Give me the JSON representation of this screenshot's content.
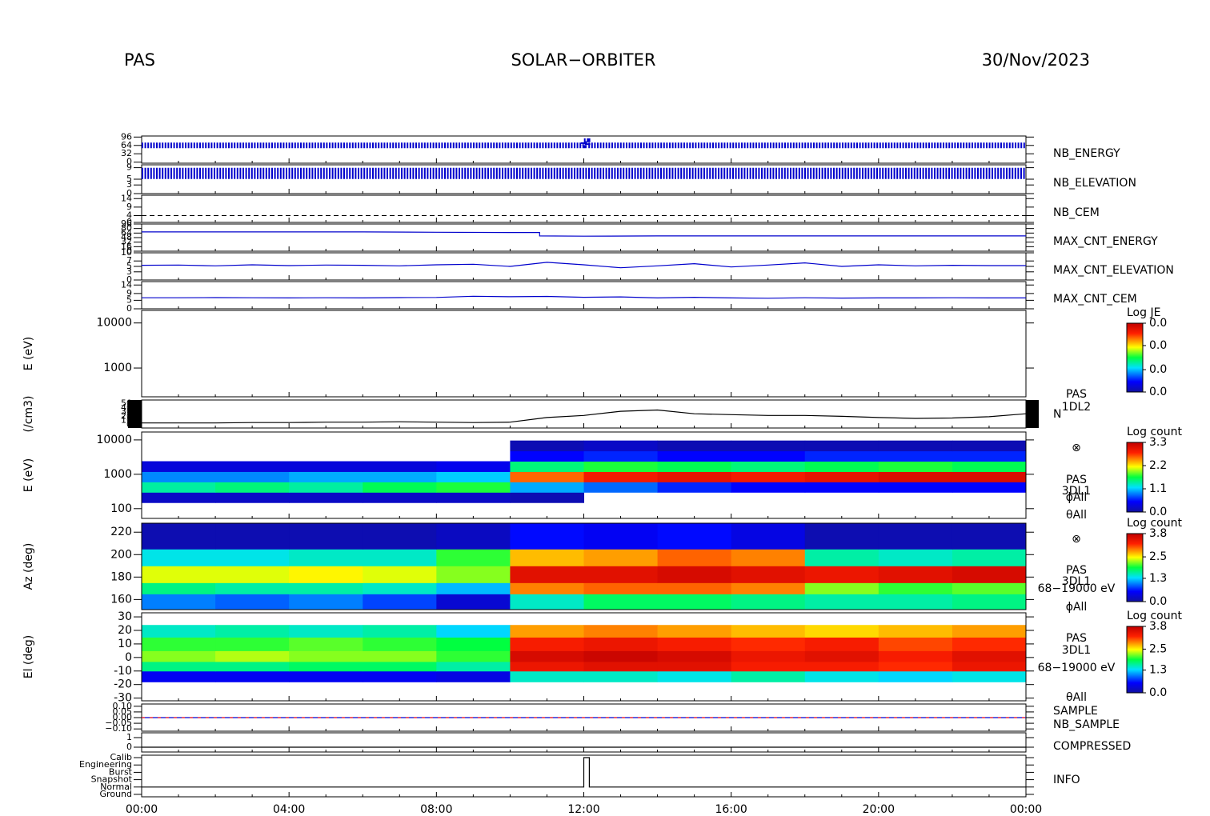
{
  "header": {
    "left": "PAS",
    "center": "SOLAR−ORBITER",
    "right": "30/Nov/2023"
  },
  "time_axis": {
    "xlim": [
      0,
      24
    ],
    "xticks": [
      {
        "value": 0,
        "label": "00:00"
      },
      {
        "value": 4,
        "label": "04:00"
      },
      {
        "value": 8,
        "label": "08:00"
      },
      {
        "value": 12,
        "label": "12:00"
      },
      {
        "value": 16,
        "label": "16:00"
      },
      {
        "value": 20,
        "label": "20:00"
      },
      {
        "value": 24,
        "label": "00:00"
      }
    ],
    "xminor": [
      1,
      2,
      3,
      5,
      6,
      7,
      9,
      10,
      11,
      13,
      14,
      15,
      17,
      18,
      19,
      21,
      22,
      23
    ]
  },
  "chart_data": [
    {
      "type": "line",
      "ylim": [
        -4,
        100
      ],
      "yticks": [
        0,
        32,
        64,
        96
      ],
      "series": [
        {
          "name": "NB_ENERGY",
          "color": "#0000cc",
          "x": [
            0,
            12,
            12,
            12.1,
            12.1,
            24
          ],
          "values": [
            64,
            64,
            80,
            80,
            64,
            64
          ]
        }
      ]
    },
    {
      "type": "line",
      "ylim": [
        0,
        10
      ],
      "yticks": [
        0,
        3,
        5,
        9
      ],
      "series": [
        {
          "name": "NB_ELEVATION",
          "color": "#0000cc",
          "x": [
            0,
            24
          ],
          "values": [
            7,
            7
          ]
        }
      ]
    },
    {
      "type": "line",
      "ylim": [
        0,
        16
      ],
      "yticks": [
        0,
        4,
        9,
        14
      ],
      "series": [
        {
          "name": "NB_CEM",
          "color": "#000000",
          "x": [
            0,
            24
          ],
          "values": [
            4,
            4
          ]
        }
      ]
    },
    {
      "type": "line",
      "ylim": [
        0,
        96
      ],
      "yticks": [
        0,
        16,
        32,
        48,
        64,
        80,
        96
      ],
      "series": [
        {
          "name": "MAX_CNT_ENERGY",
          "color": "#0000cc",
          "x": [
            0,
            2,
            4,
            6,
            8,
            10,
            10.8,
            10.8,
            12,
            14,
            16,
            18,
            20,
            22,
            24
          ],
          "values": [
            68,
            68,
            68,
            68,
            67,
            66,
            66,
            54,
            53,
            54,
            54,
            54,
            54,
            54,
            54
          ]
        }
      ]
    },
    {
      "type": "line",
      "ylim": [
        0,
        10
      ],
      "yticks": [
        0,
        3,
        5,
        7,
        10
      ],
      "series": [
        {
          "name": "MAX_CNT_ELEVATION",
          "color": "#0000cc",
          "x": [
            0,
            1,
            2,
            3,
            4,
            5,
            6,
            7,
            8,
            9,
            10,
            11,
            12,
            13,
            14,
            15,
            16,
            17,
            18,
            19,
            20,
            21,
            22,
            23,
            24
          ],
          "values": [
            5.4,
            5.5,
            5.2,
            5.6,
            5.3,
            5.5,
            5.4,
            5.2,
            5.6,
            5.8,
            5.0,
            6.5,
            5.6,
            4.5,
            5.2,
            6.0,
            4.8,
            5.5,
            6.3,
            5.0,
            5.6,
            5.2,
            5.4,
            5.3,
            5.3
          ]
        }
      ]
    },
    {
      "type": "line",
      "ylim": [
        0,
        16
      ],
      "yticks": [
        0,
        5,
        9,
        14
      ],
      "series": [
        {
          "name": "MAX_CNT_CEM",
          "color": "#0000cc",
          "x": [
            0,
            1,
            2,
            3,
            4,
            5,
            6,
            7,
            8,
            9,
            10,
            11,
            12,
            13,
            14,
            15,
            16,
            17,
            18,
            19,
            20,
            21,
            22,
            23,
            24
          ],
          "values": [
            6.5,
            6.5,
            6.6,
            6.5,
            6.4,
            6.5,
            6.4,
            6.6,
            6.7,
            7.4,
            7.1,
            7.3,
            6.8,
            7.0,
            6.4,
            6.8,
            6.4,
            6.2,
            6.5,
            6.3,
            6.4,
            6.4,
            6.5,
            6.4,
            6.4
          ]
        }
      ]
    },
    {
      "type": "spectrogram",
      "ylabel": "E (eV)",
      "log": true,
      "ylim": [
        230,
        19000
      ],
      "yticks": [
        1000,
        10000
      ],
      "colorbar": {
        "title": "Log JE",
        "clim": [
          0,
          0.04
        ],
        "ticks": [
          {
            "value": 0.04,
            "label": "0.0"
          },
          {
            "value": 0.027,
            "label": "0.0"
          },
          {
            "value": 0.013,
            "label": "0.0"
          },
          {
            "value": 0,
            "label": "0.0"
          }
        ]
      }
    },
    {
      "type": "line",
      "ylabel": "(/cm3)",
      "ylim": [
        -8,
        59
      ],
      "yticks": [
        0,
        10,
        20,
        30,
        40,
        50
      ],
      "annotations": [
        "PAS",
        "1DL2",
        "N"
      ],
      "series": [
        {
          "name": "",
          "color": "#000000",
          "x": [
            0,
            1,
            2,
            3,
            4,
            5,
            6,
            7,
            8,
            9,
            10,
            11,
            12,
            13,
            14,
            15,
            16,
            17,
            18,
            19,
            20,
            21,
            22,
            23,
            24
          ],
          "values": [
            4,
            4,
            4,
            5,
            5,
            6,
            6,
            7,
            6,
            5,
            6,
            17,
            22,
            32,
            35,
            26,
            24,
            22,
            22,
            20,
            17,
            15,
            16,
            19,
            26
          ]
        }
      ]
    },
    {
      "type": "spectrogram",
      "ylabel": "E (eV)",
      "log": true,
      "ylim": [
        52,
        17000
      ],
      "yticks": [
        100,
        1000,
        10000
      ],
      "annotations": [
        "⊗",
        "PAS",
        "3DL1",
        "ϕAll",
        "θAll"
      ],
      "colorbar": {
        "title": "Log count",
        "clim": [
          0,
          3.3
        ],
        "ticks": [
          3.3,
          2.2,
          1.1,
          {
            "value": 0,
            "label": "0.0"
          }
        ]
      },
      "xbins": [
        0,
        2,
        4,
        6,
        8,
        10,
        12,
        14,
        16,
        18,
        20,
        22,
        24
      ],
      "ybins": [
        150,
        300,
        600,
        1200,
        2400,
        4800,
        9600
      ],
      "values": [
        [
          0.2,
          0.2,
          0.2,
          0.2,
          0.2,
          0.1,
          null,
          null,
          null,
          null,
          null,
          null
        ],
        [
          1.4,
          1.5,
          1.4,
          1.6,
          1.7,
          1.0,
          0.8,
          0.6,
          0.5,
          0.5,
          0.5,
          0.5
        ],
        [
          0.9,
          0.9,
          1.0,
          1.0,
          1.1,
          2.6,
          2.9,
          3.0,
          2.9,
          3.0,
          3.1,
          3.1
        ],
        [
          0.3,
          0.3,
          0.3,
          0.3,
          0.4,
          1.5,
          1.7,
          1.6,
          1.5,
          1.6,
          1.7,
          1.6
        ],
        [
          null,
          null,
          null,
          null,
          null,
          0.5,
          0.6,
          0.5,
          0.5,
          0.6,
          0.6,
          0.6
        ],
        [
          null,
          null,
          null,
          null,
          null,
          0.1,
          0.2,
          0.1,
          0.1,
          0.1,
          0.1,
          0.1
        ]
      ]
    },
    {
      "type": "spectrogram",
      "ylabel": "Az (deg)",
      "ylim": [
        151,
        228
      ],
      "yticks": [
        160,
        180,
        200,
        220
      ],
      "annotations": [
        "⊗",
        "PAS",
        "3DL1",
        "68−19000 eV",
        "ϕAll"
      ],
      "colorbar": {
        "title": "Log count",
        "clim": [
          0,
          3.8
        ],
        "ticks": [
          3.8,
          2.5,
          1.3,
          {
            "value": 0,
            "label": "0.0"
          }
        ]
      },
      "xbins": [
        0,
        2,
        4,
        6,
        8,
        10,
        12,
        14,
        16,
        18,
        20,
        22,
        24
      ],
      "ybins": [
        151,
        165,
        175,
        190,
        205,
        228
      ],
      "values": [
        [
          1.0,
          0.9,
          1.0,
          0.8,
          0.3,
          1.5,
          1.8,
          1.8,
          1.7,
          1.6,
          1.6,
          1.7
        ],
        [
          1.7,
          1.6,
          1.6,
          1.5,
          1.2,
          2.9,
          3.0,
          3.0,
          2.9,
          2.2,
          2.0,
          2.1
        ],
        [
          2.4,
          2.4,
          2.5,
          2.4,
          2.2,
          3.5,
          3.5,
          3.6,
          3.5,
          3.4,
          3.5,
          3.6
        ],
        [
          1.4,
          1.4,
          1.5,
          1.5,
          2.0,
          2.7,
          2.8,
          3.0,
          2.9,
          1.6,
          1.5,
          1.6
        ],
        [
          0.1,
          0.1,
          0.1,
          0.1,
          0.2,
          0.6,
          0.5,
          0.6,
          0.4,
          0.1,
          0.1,
          0.1
        ]
      ]
    },
    {
      "type": "spectrogram",
      "ylabel": "El (deg)",
      "ylim": [
        -32,
        33
      ],
      "yticks": [
        -30,
        -20,
        -10,
        0,
        10,
        20,
        30
      ],
      "annotations": [
        "PAS",
        "3DL1",
        "68−19000 eV",
        "θAll"
      ],
      "colorbar": {
        "title": "Log count",
        "clim": [
          0,
          3.8
        ],
        "ticks": [
          3.8,
          2.5,
          1.3,
          {
            "value": 0,
            "label": "0.0"
          }
        ]
      },
      "xbins": [
        0,
        2,
        4,
        6,
        8,
        10,
        12,
        14,
        16,
        18,
        20,
        22,
        24
      ],
      "ybins": [
        -18,
        -10,
        -3,
        5,
        15,
        24
      ],
      "values": [
        [
          0.5,
          0.5,
          0.5,
          0.5,
          0.4,
          1.5,
          1.5,
          1.4,
          1.6,
          1.4,
          1.3,
          1.4
        ],
        [
          1.7,
          1.7,
          1.8,
          1.8,
          1.6,
          3.4,
          3.5,
          3.5,
          3.3,
          3.3,
          3.2,
          3.4
        ],
        [
          2.2,
          2.3,
          2.2,
          2.2,
          2.0,
          3.6,
          3.7,
          3.6,
          3.4,
          3.5,
          3.3,
          3.5
        ],
        [
          2.0,
          2.0,
          2.1,
          2.0,
          1.9,
          3.3,
          3.4,
          3.3,
          3.2,
          3.3,
          3.1,
          3.2
        ],
        [
          1.5,
          1.6,
          1.5,
          1.6,
          1.3,
          2.8,
          2.9,
          2.8,
          2.7,
          2.6,
          2.7,
          2.8
        ]
      ]
    },
    {
      "type": "line",
      "ylim": [
        -0.12,
        0.12
      ],
      "yticks": [
        {
          "value": 0.1,
          "label": "0.10"
        },
        {
          "value": 0.05,
          "label": "0.05"
        },
        {
          "value": 0,
          "label": "0.00"
        },
        {
          "value": -0.05,
          "label": "−0.05"
        },
        {
          "value": -0.1,
          "label": "−0.10"
        }
      ],
      "series": [
        {
          "name": "SAMPLE",
          "color": "#0000cc",
          "x": [
            0,
            24
          ],
          "values": [
            0,
            0
          ]
        },
        {
          "name": "NB_SAMPLE",
          "color": "#ff2020",
          "x": [
            0,
            24
          ],
          "values": [
            0,
            0
          ]
        }
      ]
    },
    {
      "type": "line",
      "ylim": [
        -0.5,
        1.5
      ],
      "yticks": [
        0,
        1
      ],
      "series": [
        {
          "name": "COMPRESSED",
          "color": "#000000",
          "x": [
            0,
            24
          ],
          "values": [
            0,
            0
          ]
        }
      ]
    },
    {
      "type": "line",
      "ylim": [
        -0.33,
        5.33
      ],
      "yticks": [
        {
          "value": 5,
          "label": "Calib"
        },
        {
          "value": 4,
          "label": "Engineering"
        },
        {
          "value": 3,
          "label": "Burst"
        },
        {
          "value": 2,
          "label": "Snapshot"
        },
        {
          "value": 1,
          "label": "Normal"
        },
        {
          "value": 0,
          "label": "Ground"
        }
      ],
      "series": [
        {
          "name": "INFO",
          "color": "#000000",
          "x": [
            0,
            12,
            12,
            12.15,
            12.15,
            24
          ],
          "values": [
            1,
            1,
            5,
            5,
            1,
            1
          ]
        }
      ]
    }
  ]
}
